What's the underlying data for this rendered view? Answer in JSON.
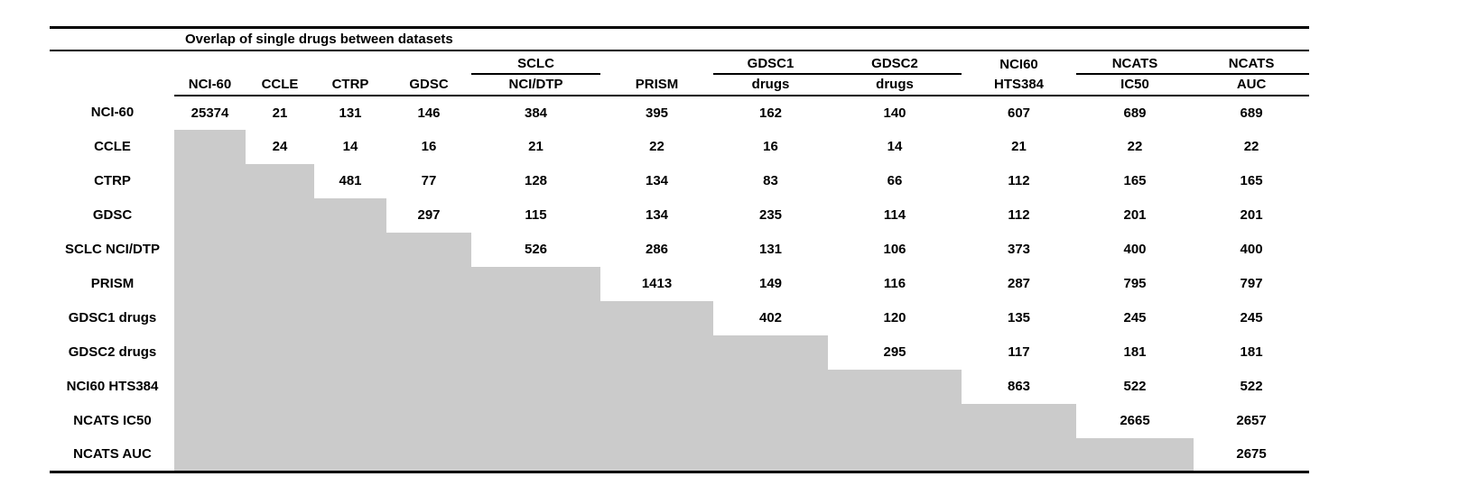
{
  "chart_data": {
    "type": "table",
    "title": "Overlap of single drugs between datasets",
    "column_groups": [
      "",
      "",
      "",
      "",
      "SCLC",
      "",
      "GDSC1",
      "GDSC2",
      "NCI60",
      "NCATS",
      "NCATS"
    ],
    "column_group_underline": [
      false,
      false,
      false,
      false,
      true,
      false,
      true,
      true,
      false,
      true,
      true
    ],
    "column_headers": [
      "NCI-60",
      "CCLE",
      "CTRP",
      "GDSC",
      "NCI/DTP",
      "PRISM",
      "drugs",
      "drugs",
      "HTS384",
      "IC50",
      "AUC"
    ],
    "row_labels": [
      "NCI-60",
      "CCLE",
      "CTRP",
      "GDSC",
      "SCLC NCI/DTP",
      "PRISM",
      "GDSC1 drugs",
      "GDSC2 drugs",
      "NCI60 HTS384",
      "NCATS IC50",
      "NCATS AUC"
    ],
    "matrix": [
      [
        25374,
        21,
        131,
        146,
        384,
        395,
        162,
        140,
        607,
        689,
        689
      ],
      [
        null,
        24,
        14,
        16,
        21,
        22,
        16,
        14,
        21,
        22,
        22
      ],
      [
        null,
        null,
        481,
        77,
        128,
        134,
        83,
        66,
        112,
        165,
        165
      ],
      [
        null,
        null,
        null,
        297,
        115,
        134,
        235,
        114,
        112,
        201,
        201
      ],
      [
        null,
        null,
        null,
        null,
        526,
        286,
        131,
        106,
        373,
        400,
        400
      ],
      [
        null,
        null,
        null,
        null,
        null,
        1413,
        149,
        116,
        287,
        795,
        797
      ],
      [
        null,
        null,
        null,
        null,
        null,
        null,
        402,
        120,
        135,
        245,
        245
      ],
      [
        null,
        null,
        null,
        null,
        null,
        null,
        null,
        295,
        117,
        181,
        181
      ],
      [
        null,
        null,
        null,
        null,
        null,
        null,
        null,
        null,
        863,
        522,
        522
      ],
      [
        null,
        null,
        null,
        null,
        null,
        null,
        null,
        null,
        null,
        2665,
        2657
      ],
      [
        null,
        null,
        null,
        null,
        null,
        null,
        null,
        null,
        null,
        null,
        2675
      ]
    ],
    "lower_triangle": "shaded",
    "colors": {
      "lower_triangle_fill": "#cbcbcb",
      "text": "#000000",
      "rules": "#000000",
      "background": "#ffffff"
    }
  }
}
